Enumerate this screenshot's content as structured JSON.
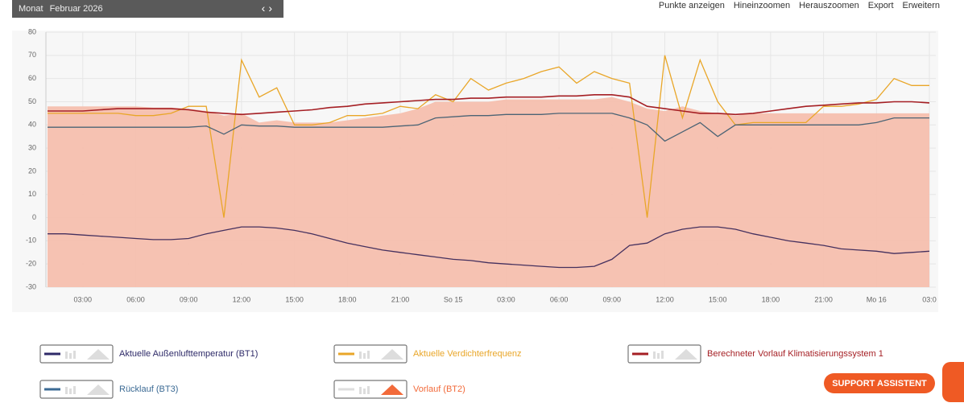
{
  "toolbar": {
    "period_label": "Monat",
    "period_value": "Februar 2026"
  },
  "actions": [
    "Punkte anzeigen",
    "Hineinzoomen",
    "Herauszoomen",
    "Export",
    "Erweitern"
  ],
  "support_button": "SUPPORT ASSISTENT",
  "chart_data": {
    "type": "line",
    "categories": [
      null,
      null,
      "03:00",
      null,
      null,
      "06:00",
      null,
      null,
      "09:00",
      null,
      null,
      "12:00",
      null,
      null,
      "15:00",
      null,
      null,
      "18:00",
      null,
      null,
      "21:00",
      null,
      null,
      "So 15",
      null,
      null,
      "03:00",
      null,
      null,
      "06:00",
      null,
      null,
      "09:00",
      null,
      null,
      "12:00",
      null,
      null,
      "15:00",
      null,
      null,
      "18:00",
      null,
      null,
      "21:00",
      null,
      null,
      "Mo 16",
      null,
      null,
      "03:0"
    ],
    "ylim": [
      -30,
      80
    ],
    "yticks": [
      -30,
      -20,
      -10,
      0,
      10,
      20,
      30,
      40,
      50,
      60,
      70,
      80
    ],
    "grid": true,
    "series": [
      {
        "name": "Aktuelle Außenlufttemperatur (BT1)",
        "color": "#2e2a68",
        "line_color": "#45305e",
        "type": "line",
        "values": [
          -7,
          -7,
          -7.5,
          -8,
          -8.5,
          -9,
          -9.5,
          -9.5,
          -9,
          -7,
          -5.5,
          -4,
          -4,
          -4.5,
          -5.5,
          -7,
          -9,
          -11,
          -12.5,
          -14,
          -15,
          -16,
          -17,
          -18,
          -18.5,
          -19.5,
          -20,
          -20.5,
          -21,
          -21.5,
          -21.5,
          -21,
          -18,
          -12,
          -11,
          -7,
          -5,
          -4,
          -4,
          -5,
          -7,
          -8.5,
          -10,
          -11,
          -12,
          -13.5,
          -14,
          -14.5,
          -15.5,
          -15,
          -14.5
        ]
      },
      {
        "name": "Aktuelle Verdichterfrequenz",
        "color": "#e9a628",
        "line_color": "#e9a628",
        "type": "line",
        "values": [
          45,
          45,
          45,
          45,
          45,
          44,
          44,
          45,
          48,
          48,
          0,
          68,
          52,
          56,
          40,
          40,
          41,
          44,
          44,
          45,
          48,
          47,
          53,
          50,
          60,
          55,
          58,
          60,
          63,
          65,
          58,
          63,
          60,
          58,
          0,
          70,
          43,
          68,
          50,
          40,
          41,
          41,
          41,
          41,
          48,
          48,
          49,
          51,
          60,
          57,
          57
        ]
      },
      {
        "name": "Berechneter Vorlauf Klimatisierungssystem 1",
        "color": "#a51f24",
        "line_color": "#a51f24",
        "type": "line",
        "values": [
          46,
          46,
          46,
          46.5,
          47,
          47,
          47,
          47,
          46.5,
          45.5,
          45,
          44.5,
          45,
          45.5,
          46,
          46.5,
          47.5,
          48,
          49,
          49.5,
          50,
          50.5,
          51,
          51,
          51.5,
          51.5,
          52,
          52,
          52,
          52.5,
          52.5,
          53,
          53,
          52,
          48,
          47,
          46,
          45,
          45,
          44.5,
          45,
          46,
          47,
          48,
          48.5,
          49,
          49.5,
          49.5,
          50,
          50,
          49.5
        ]
      },
      {
        "name": "Rücklauf (BT3)",
        "color": "#3b6a94",
        "line_color": "#4c6475",
        "type": "line",
        "values": [
          39,
          39,
          39,
          39,
          39,
          39,
          39,
          39,
          39,
          39.5,
          36,
          40,
          39.5,
          39.5,
          39,
          39,
          39,
          39,
          39,
          39,
          39.5,
          40,
          43,
          43.5,
          44,
          44,
          44.5,
          44.5,
          44.5,
          45,
          45,
          45,
          45,
          43,
          40,
          33,
          37,
          41,
          35,
          40,
          40,
          40,
          40,
          40,
          40,
          40,
          40,
          41,
          43,
          43,
          43
        ]
      },
      {
        "name": "Vorlauf (BT2)",
        "color": "#f26a3a",
        "line_color": "#f5bfae",
        "type": "area",
        "values": [
          48,
          48,
          48,
          48,
          48,
          48,
          47.5,
          47.5,
          47,
          46,
          44,
          45,
          41,
          42,
          41,
          41,
          41,
          42,
          43,
          44,
          45,
          47,
          50,
          50,
          50,
          50,
          51,
          51,
          51,
          51,
          51,
          51,
          52,
          50,
          47,
          46,
          48,
          46,
          45,
          44,
          45,
          45,
          45,
          45,
          45,
          45,
          45,
          45,
          45,
          45,
          45
        ]
      }
    ]
  }
}
